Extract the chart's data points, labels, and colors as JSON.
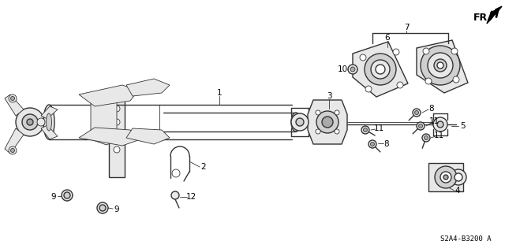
{
  "diagram_code": "S2A4-B3200 A",
  "background_color": "#ffffff",
  "line_color": "#333333",
  "gray_fill": "#d0d0d0",
  "light_gray": "#e8e8e8",
  "dark_gray": "#aaaaaa",
  "figsize": [
    6.4,
    3.2
  ],
  "dpi": 100
}
